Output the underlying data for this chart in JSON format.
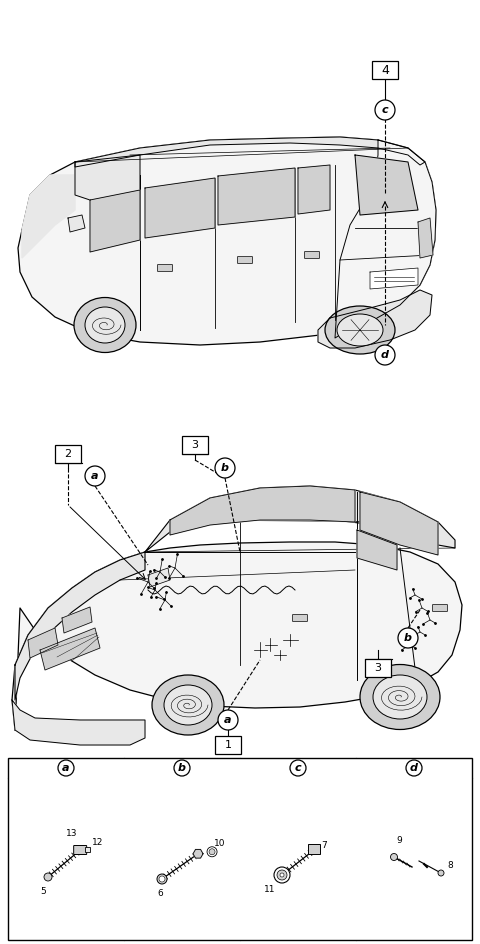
{
  "bg_color": "#ffffff",
  "fig_width": 4.8,
  "fig_height": 9.44,
  "dpi": 100,
  "top_car_label": "4",
  "top_callout_c": "c",
  "top_callout_d": "d",
  "bottom_labels": {
    "num1": "1",
    "num2": "2",
    "num3a": "3",
    "num3b": "3"
  },
  "bottom_callouts": {
    "a1": "a",
    "a2": "a",
    "b1": "b",
    "b2": "b"
  },
  "table_sections": [
    "a",
    "b",
    "c",
    "d"
  ],
  "table_parts": {
    "a": [
      "13",
      "12",
      "5"
    ],
    "b": [
      "10",
      "6"
    ],
    "c": [
      "7",
      "11"
    ],
    "d": [
      "9",
      "8"
    ]
  },
  "line_color": "#000000",
  "fill_light": "#f5f5f5",
  "fill_medium": "#e8e8e8",
  "fill_dark": "#d0d0d0"
}
